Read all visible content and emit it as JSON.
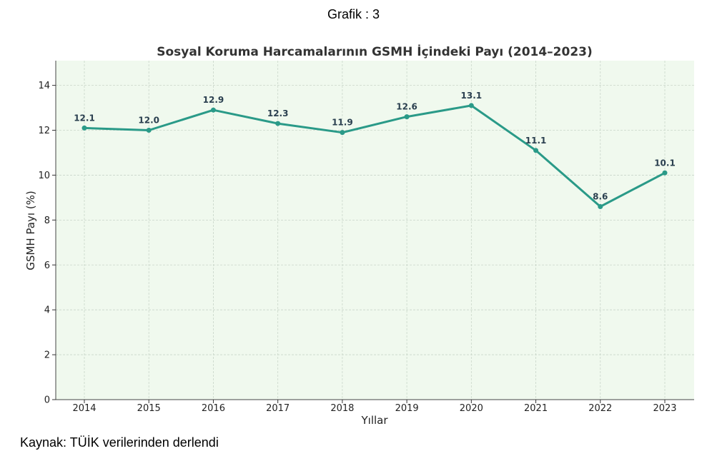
{
  "header": {
    "caption": "Grafik : 3"
  },
  "footer": {
    "source": "Kaynak: TÜİK verilerinden derlendi"
  },
  "colors": {
    "line": "#2a9a88",
    "plot_bg": "#f0f9ee",
    "grid": "#c9d6c9",
    "label": "#2a3f4f"
  },
  "chart_data": {
    "type": "line",
    "title": "Sosyal Koruma Harcamalarının GSMH İçindeki Payı (2014–2023)",
    "xlabel": "Yıllar",
    "ylabel": "GSMH Payı (%)",
    "categories": [
      "2014",
      "2015",
      "2016",
      "2017",
      "2018",
      "2019",
      "2020",
      "2021",
      "2022",
      "2023"
    ],
    "values": [
      12.1,
      12.0,
      12.9,
      12.3,
      11.9,
      12.6,
      13.1,
      11.1,
      8.6,
      10.1
    ],
    "value_labels": [
      "12.1",
      "12.0",
      "12.9",
      "12.3",
      "11.9",
      "12.6",
      "13.1",
      "11.1",
      "8.6",
      "10.1"
    ],
    "ylim": [
      0,
      15.1
    ],
    "yticks": [
      0,
      2,
      4,
      6,
      8,
      10,
      12,
      14
    ],
    "ytick_labels": [
      "0",
      "2",
      "4",
      "6",
      "8",
      "10",
      "12",
      "14"
    ],
    "grid": true,
    "grid_style": "dashed",
    "markers": true
  }
}
